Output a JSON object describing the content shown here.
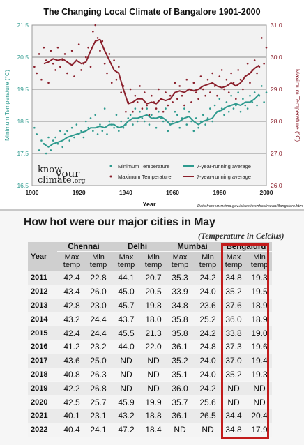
{
  "chart_data": [
    {
      "type": "line",
      "title": "The Changing Local Climate of Bangalore 1901-2000",
      "xlabel": "Year",
      "ylabel_left": "Minimum Temperature (°C)",
      "ylabel_right": "Maximum Temperature (°C)",
      "xlim": [
        1900,
        2000
      ],
      "ylim_left": [
        16.5,
        21.5
      ],
      "ylim_right": [
        26.0,
        31.0
      ],
      "x_ticks": [
        "1900",
        "1920",
        "1940",
        "1960",
        "1980",
        "2000"
      ],
      "y_ticks_left": [
        "16.5",
        "17.5",
        "18.5",
        "19.5",
        "20.5",
        "21.5"
      ],
      "y_ticks_right": [
        "26.0",
        "27.0",
        "28.0",
        "29.0",
        "30.0",
        "31.0"
      ],
      "grid": "horizontal",
      "legend": [
        {
          "label": "Minimum Temperature",
          "kind": "dots",
          "color": "#2e9a8e"
        },
        {
          "label": "7-year-running average",
          "kind": "line",
          "color": "#2e9a8e"
        },
        {
          "label": "Maximum Temperature",
          "kind": "dots",
          "color": "#8a1f2b"
        },
        {
          "label": "7-year-running average",
          "kind": "line",
          "color": "#8a1f2b"
        }
      ],
      "logo_text": [
        "know",
        "your",
        "climate",
        ".org"
      ],
      "source_note": "Data from www.imd.gov.in/section/nhac/mean/Bangalore.htm",
      "series": [
        {
          "name": "7-year-running average",
          "axis": "left",
          "color": "#2e9a8e",
          "style": "line",
          "x": [
            1905,
            1907,
            1909,
            1911,
            1913,
            1915,
            1917,
            1919,
            1921,
            1923,
            1925,
            1927,
            1929,
            1931,
            1933,
            1935,
            1937,
            1939,
            1941,
            1943,
            1945,
            1947,
            1949,
            1951,
            1953,
            1955,
            1957,
            1959,
            1961,
            1963,
            1965,
            1967,
            1969,
            1971,
            1973,
            1975,
            1977,
            1979,
            1981,
            1983,
            1985,
            1987,
            1989,
            1991,
            1993,
            1995,
            1997
          ],
          "y": [
            17.8,
            17.7,
            17.8,
            17.85,
            17.9,
            18.0,
            18.05,
            18.1,
            18.15,
            18.2,
            18.3,
            18.3,
            18.35,
            18.3,
            18.4,
            18.4,
            18.3,
            18.35,
            18.5,
            18.6,
            18.6,
            18.65,
            18.7,
            18.6,
            18.6,
            18.65,
            18.55,
            18.4,
            18.45,
            18.5,
            18.6,
            18.65,
            18.5,
            18.4,
            18.5,
            18.55,
            18.6,
            18.8,
            18.85,
            18.95,
            19.0,
            19.05,
            19.0,
            19.1,
            19.1,
            19.2,
            19.35
          ]
        },
        {
          "name": "7-year-running average",
          "axis": "right",
          "color": "#8a1f2b",
          "style": "line",
          "x": [
            1905,
            1907,
            1909,
            1911,
            1913,
            1915,
            1917,
            1919,
            1921,
            1923,
            1925,
            1927,
            1929,
            1931,
            1933,
            1935,
            1937,
            1939,
            1941,
            1943,
            1945,
            1947,
            1949,
            1951,
            1953,
            1955,
            1957,
            1959,
            1961,
            1963,
            1965,
            1967,
            1969,
            1971,
            1973,
            1975,
            1977,
            1979,
            1981,
            1983,
            1985,
            1987,
            1989,
            1991,
            1993,
            1995,
            1997
          ],
          "y": [
            29.8,
            29.85,
            29.95,
            29.9,
            29.95,
            29.85,
            29.75,
            29.9,
            29.8,
            29.85,
            30.2,
            30.5,
            30.55,
            30.2,
            29.9,
            29.6,
            29.5,
            29.0,
            28.55,
            28.6,
            28.7,
            28.7,
            28.55,
            28.6,
            28.55,
            28.7,
            28.65,
            28.7,
            28.9,
            28.95,
            28.9,
            29.0,
            28.95,
            29.0,
            29.1,
            29.15,
            29.2,
            29.1,
            29.05,
            29.1,
            29.2,
            29.1,
            29.2,
            29.4,
            29.5,
            29.65,
            29.75
          ]
        },
        {
          "name": "Minimum Temperature",
          "axis": "left",
          "color": "#2e9a8e",
          "style": "dots",
          "x": [
            1901,
            1902,
            1903,
            1904,
            1905,
            1906,
            1907,
            1908,
            1909,
            1910,
            1911,
            1912,
            1913,
            1914,
            1915,
            1916,
            1917,
            1918,
            1919,
            1920,
            1921,
            1922,
            1923,
            1924,
            1925,
            1926,
            1927,
            1928,
            1929,
            1930,
            1931,
            1932,
            1933,
            1934,
            1935,
            1936,
            1937,
            1938,
            1939,
            1940,
            1941,
            1942,
            1943,
            1944,
            1945,
            1946,
            1947,
            1948,
            1949,
            1950,
            1951,
            1952,
            1953,
            1954,
            1955,
            1956,
            1957,
            1958,
            1959,
            1960,
            1961,
            1962,
            1963,
            1964,
            1965,
            1966,
            1967,
            1968,
            1969,
            1970,
            1971,
            1972,
            1973,
            1974,
            1975,
            1976,
            1977,
            1978,
            1979,
            1980,
            1981,
            1982,
            1983,
            1984,
            1985,
            1986,
            1987,
            1988,
            1989,
            1990,
            1991,
            1992,
            1993,
            1994,
            1995,
            1996,
            1997,
            1998,
            1999,
            2000
          ],
          "y": [
            18.3,
            18.1,
            17.6,
            17.9,
            17.8,
            17.5,
            18.0,
            17.6,
            17.9,
            18.0,
            17.8,
            18.2,
            17.7,
            18.1,
            18.2,
            17.9,
            18.3,
            18.0,
            18.4,
            18.1,
            18.2,
            18.0,
            18.5,
            18.3,
            18.6,
            18.2,
            18.7,
            18.1,
            18.4,
            18.2,
            18.9,
            18.1,
            18.5,
            18.4,
            18.3,
            18.7,
            18.2,
            18.5,
            18.3,
            18.4,
            18.6,
            18.7,
            18.4,
            18.9,
            18.5,
            18.8,
            18.6,
            18.5,
            18.9,
            18.4,
            18.7,
            18.6,
            18.3,
            18.8,
            18.6,
            18.5,
            18.9,
            18.2,
            18.4,
            18.5,
            18.8,
            18.7,
            18.3,
            18.6,
            18.9,
            18.4,
            18.8,
            18.5,
            18.2,
            18.6,
            18.3,
            18.5,
            18.7,
            18.4,
            18.6,
            18.9,
            18.5,
            19.0,
            18.8,
            19.2,
            18.9,
            18.7,
            19.1,
            18.8,
            19.3,
            18.9,
            19.0,
            19.4,
            18.8,
            19.2,
            19.0,
            18.9,
            19.3,
            19.1,
            19.4,
            19.0,
            19.3,
            19.6,
            19.1,
            19.4
          ]
        },
        {
          "name": "Maximum Temperature",
          "axis": "right",
          "color": "#8a1f2b",
          "style": "dots",
          "x": [
            1901,
            1902,
            1903,
            1904,
            1905,
            1906,
            1907,
            1908,
            1909,
            1910,
            1911,
            1912,
            1913,
            1914,
            1915,
            1916,
            1917,
            1918,
            1919,
            1920,
            1921,
            1922,
            1923,
            1924,
            1925,
            1926,
            1927,
            1928,
            1929,
            1930,
            1931,
            1932,
            1933,
            1934,
            1935,
            1936,
            1937,
            1938,
            1939,
            1940,
            1941,
            1942,
            1943,
            1944,
            1945,
            1946,
            1947,
            1948,
            1949,
            1950,
            1951,
            1952,
            1953,
            1954,
            1955,
            1956,
            1957,
            1958,
            1959,
            1960,
            1961,
            1962,
            1963,
            1964,
            1965,
            1966,
            1967,
            1968,
            1969,
            1970,
            1971,
            1972,
            1973,
            1974,
            1975,
            1976,
            1977,
            1978,
            1979,
            1980,
            1981,
            1982,
            1983,
            1984,
            1985,
            1986,
            1987,
            1988,
            1989,
            1990,
            1991,
            1992,
            1993,
            1994,
            1995,
            1996,
            1997,
            1998,
            1999,
            2000
          ],
          "y": [
            29.7,
            29.5,
            30.1,
            29.3,
            30.3,
            29.9,
            29.2,
            30.2,
            29.8,
            29.6,
            30.3,
            29.7,
            29.9,
            30.1,
            29.5,
            29.8,
            30.2,
            29.4,
            29.9,
            30.4,
            29.6,
            29.8,
            30.0,
            30.3,
            29.7,
            30.8,
            31.0,
            30.6,
            30.2,
            30.5,
            29.8,
            29.5,
            30.1,
            29.2,
            29.9,
            29.3,
            29.7,
            28.9,
            29.1,
            28.3,
            28.6,
            29.0,
            28.3,
            28.8,
            28.6,
            29.1,
            28.4,
            28.9,
            28.5,
            28.2,
            28.8,
            28.6,
            28.4,
            29.0,
            28.7,
            28.3,
            28.9,
            28.5,
            28.8,
            28.6,
            29.2,
            28.7,
            29.1,
            28.8,
            28.5,
            29.3,
            29.0,
            28.6,
            29.2,
            28.9,
            28.7,
            29.4,
            29.0,
            28.8,
            29.3,
            28.9,
            29.5,
            29.1,
            28.8,
            29.4,
            29.6,
            29.0,
            29.3,
            28.9,
            29.5,
            29.2,
            28.7,
            29.6,
            29.3,
            29.0,
            29.4,
            29.8,
            29.2,
            29.6,
            29.9,
            29.5,
            29.7,
            30.6,
            29.8,
            30.3
          ]
        }
      ]
    },
    {
      "type": "table",
      "title": "How hot were our major cities in May",
      "subtitle": "(Temperature in Celcius)",
      "year_header": "Year",
      "cities": [
        "Chennai",
        "Delhi",
        "Mumbai",
        "Bengaluru"
      ],
      "subheaders": [
        "Max temp",
        "Min temp"
      ],
      "subheader_lines": [
        "Max",
        "Min",
        "temp"
      ],
      "highlight_city": "Bengaluru",
      "highlight_color": "#c21c1c",
      "rows": [
        [
          "2011",
          "42.4",
          "22.8",
          "44.1",
          "20.7",
          "35.3",
          "24.2",
          "34.8",
          "19.3"
        ],
        [
          "2012",
          "43.4",
          "26.0",
          "45.0",
          "20.5",
          "33.9",
          "24.0",
          "35.2",
          "19.5"
        ],
        [
          "2013",
          "42.8",
          "23.0",
          "45.7",
          "19.8",
          "34.8",
          "23.6",
          "37.6",
          "18.9"
        ],
        [
          "2014",
          "43.2",
          "24.4",
          "43.7",
          "18.0",
          "35.8",
          "25.2",
          "36.0",
          "18.9"
        ],
        [
          "2015",
          "42.4",
          "24.4",
          "45.5",
          "21.3",
          "35.8",
          "24.2",
          "33.8",
          "19.0"
        ],
        [
          "2016",
          "41.2",
          "23.2",
          "44.0",
          "22.0",
          "36.1",
          "24.8",
          "37.3",
          "19.6"
        ],
        [
          "2017",
          "43.6",
          "25.0",
          "ND",
          "ND",
          "35.2",
          "24.0",
          "37.0",
          "19.4"
        ],
        [
          "2018",
          "40.8",
          "26.3",
          "ND",
          "ND",
          "35.1",
          "24.0",
          "35.2",
          "19.3"
        ],
        [
          "2019",
          "42.2",
          "26.8",
          "ND",
          "ND",
          "36.0",
          "24.2",
          "ND",
          "ND"
        ],
        [
          "2020",
          "42.5",
          "25.7",
          "45.9",
          "19.9",
          "35.7",
          "25.6",
          "ND",
          "ND"
        ],
        [
          "2021",
          "40.1",
          "23.1",
          "43.2",
          "18.8",
          "36.1",
          "26.5",
          "34.4",
          "20.4"
        ],
        [
          "2022",
          "40.4",
          "24.1",
          "47.2",
          "18.4",
          "ND",
          "ND",
          "34.8",
          "17.9"
        ]
      ]
    }
  ]
}
